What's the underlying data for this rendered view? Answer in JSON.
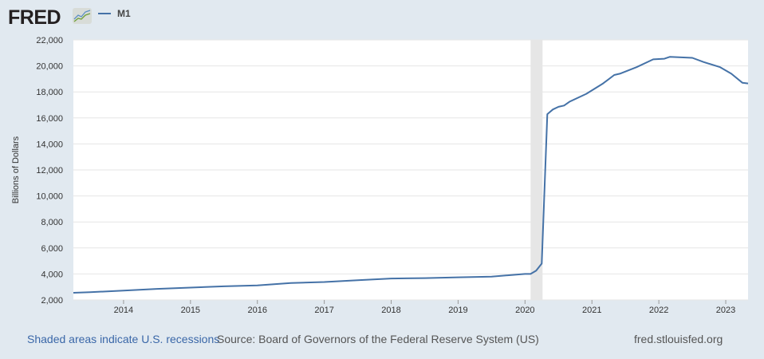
{
  "header": {
    "logo": "FRED",
    "legend_label": "M1"
  },
  "footer": {
    "recession_note": "Shaded areas indicate U.S. recessions",
    "source": "Source: Board of Governors of the Federal Reserve System (US)",
    "site": "fred.stlouisfed.org"
  },
  "colors": {
    "line": "#4572a7",
    "recession": "#e6e6e6",
    "grid": "#e6e6e6",
    "background": "#e1e9f0"
  },
  "chart_data": {
    "type": "line",
    "title": "",
    "xlabel": "",
    "ylabel": "Billions of Dollars",
    "ylim": [
      2000,
      22000
    ],
    "xlim": [
      "2013-04",
      "2023-05"
    ],
    "grid": true,
    "legend": "top-left",
    "yticks": [
      "2,000",
      "4,000",
      "6,000",
      "8,000",
      "10,000",
      "12,000",
      "14,000",
      "16,000",
      "18,000",
      "20,000",
      "22,000"
    ],
    "xticks": [
      "2014",
      "2015",
      "2016",
      "2017",
      "2018",
      "2019",
      "2020",
      "2021",
      "2022",
      "2023"
    ],
    "recessions": [
      [
        "2020-02",
        "2020-04"
      ]
    ],
    "series": [
      {
        "name": "M1",
        "x": [
          "2013-04",
          "2013-07",
          "2014-01",
          "2014-07",
          "2015-01",
          "2015-07",
          "2016-01",
          "2016-07",
          "2017-01",
          "2017-07",
          "2018-01",
          "2018-07",
          "2019-01",
          "2019-07",
          "2020-01",
          "2020-02",
          "2020-03",
          "2020-04",
          "2020-05",
          "2020-06",
          "2020-07",
          "2020-08",
          "2020-09",
          "2020-12",
          "2021-03",
          "2021-05",
          "2021-06",
          "2021-09",
          "2021-12",
          "2022-02",
          "2022-03",
          "2022-07",
          "2022-09",
          "2022-12",
          "2023-02",
          "2023-04",
          "2023-05"
        ],
        "values": [
          2550,
          2600,
          2720,
          2850,
          2950,
          3050,
          3120,
          3300,
          3380,
          3520,
          3650,
          3680,
          3740,
          3800,
          4000,
          4000,
          4250,
          4800,
          16290,
          16650,
          16850,
          16950,
          17250,
          17850,
          18650,
          19300,
          19400,
          19900,
          20500,
          20550,
          20700,
          20620,
          20300,
          19900,
          19400,
          18700,
          18650
        ]
      }
    ]
  }
}
